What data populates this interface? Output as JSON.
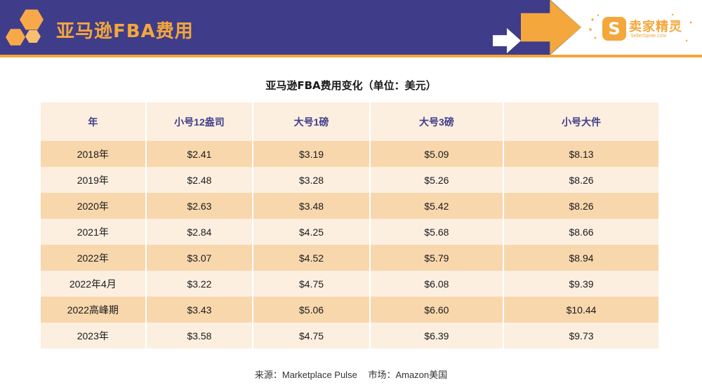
{
  "header": {
    "title": "亚马逊FBA费用"
  },
  "logo": {
    "icon_letter": "S",
    "name": "卖家精灵",
    "domain": "SellerSprite.com",
    "icon": "seller-sprite-logo-icon"
  },
  "colors": {
    "header_bg": "#3f3c8a",
    "accent": "#f3a73c",
    "row_dark": "#f8d7ad",
    "row_light": "#fcefe0",
    "header_text": "#3f3c8a"
  },
  "table": {
    "title": "亚马逊FBA费用变化（单位：美元）",
    "columns": [
      "年",
      "小号12盎司",
      "大号1磅",
      "大号3磅",
      "小号大件"
    ],
    "rows": [
      [
        "2018年",
        "$2.41",
        "$3.19",
        "$5.09",
        "$8.13"
      ],
      [
        "2019年",
        "$2.48",
        "$3.28",
        "$5.26",
        "$8.26"
      ],
      [
        "2020年",
        "$2.63",
        "$3.48",
        "$5.42",
        "$8.26"
      ],
      [
        "2021年",
        "$2.84",
        "$4.25",
        "$5.68",
        "$8.66"
      ],
      [
        "2022年",
        "$3.07",
        "$4.52",
        "$5.79",
        "$8.94"
      ],
      [
        "2022年4月",
        "$3.22",
        "$4.75",
        "$6.08",
        "$9.39"
      ],
      [
        "2022高峰期",
        "$3.43",
        "$5.06",
        "$6.60",
        "$10.44"
      ],
      [
        "2023年",
        "$3.58",
        "$4.75",
        "$6.39",
        "$9.73"
      ]
    ]
  },
  "footer": {
    "source": "来源：Marketplace Pulse",
    "market": "市场：Amazon美国"
  }
}
